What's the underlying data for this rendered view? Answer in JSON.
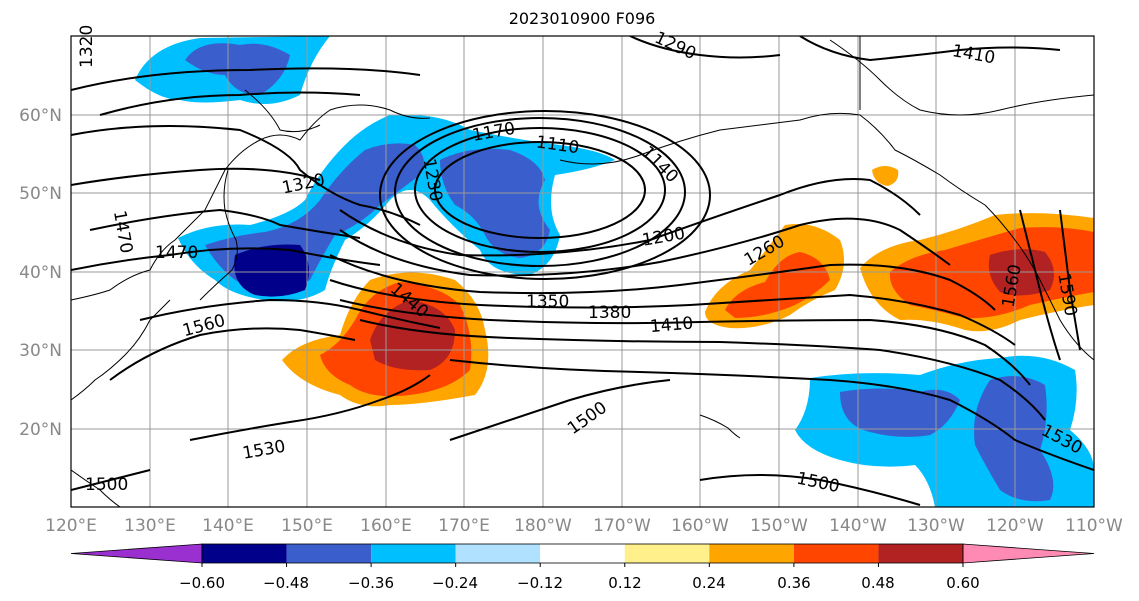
{
  "title": "2023010900 F096",
  "map": {
    "lat_labels": [
      "60°N",
      "50°N",
      "40°N",
      "30°N",
      "20°N"
    ],
    "lon_labels": [
      "120°E",
      "130°E",
      "140°E",
      "150°E",
      "160°E",
      "170°E",
      "180°W",
      "170°W",
      "160°W",
      "150°W",
      "140°W",
      "130°W",
      "120°W",
      "110°W"
    ],
    "contour_labels": [
      "1320",
      "1470",
      "1320",
      "1470",
      "1560",
      "1530",
      "1500",
      "1230",
      "1170",
      "1110",
      "1140",
      "1200",
      "1260",
      "1290",
      "1350",
      "1380",
      "1410",
      "1440",
      "1500",
      "1500",
      "1530",
      "1560",
      "1590",
      "1410"
    ],
    "colors": {
      "grid": "#999999",
      "tick_label": "#888888",
      "contour": "#000000"
    }
  },
  "colorbar": {
    "tick_labels": [
      "−0.60",
      "−0.48",
      "−0.36",
      "−0.24",
      "−0.12",
      "0.12",
      "0.24",
      "0.36",
      "0.48",
      "0.60"
    ],
    "colors": [
      "#9b30d0",
      "#00008b",
      "#3a5fcd",
      "#00bfff",
      "#b0e2ff",
      "#ffffff",
      "#fff08c",
      "#ffa500",
      "#ff4500",
      "#b22222",
      "#ff8ab4"
    ]
  }
}
